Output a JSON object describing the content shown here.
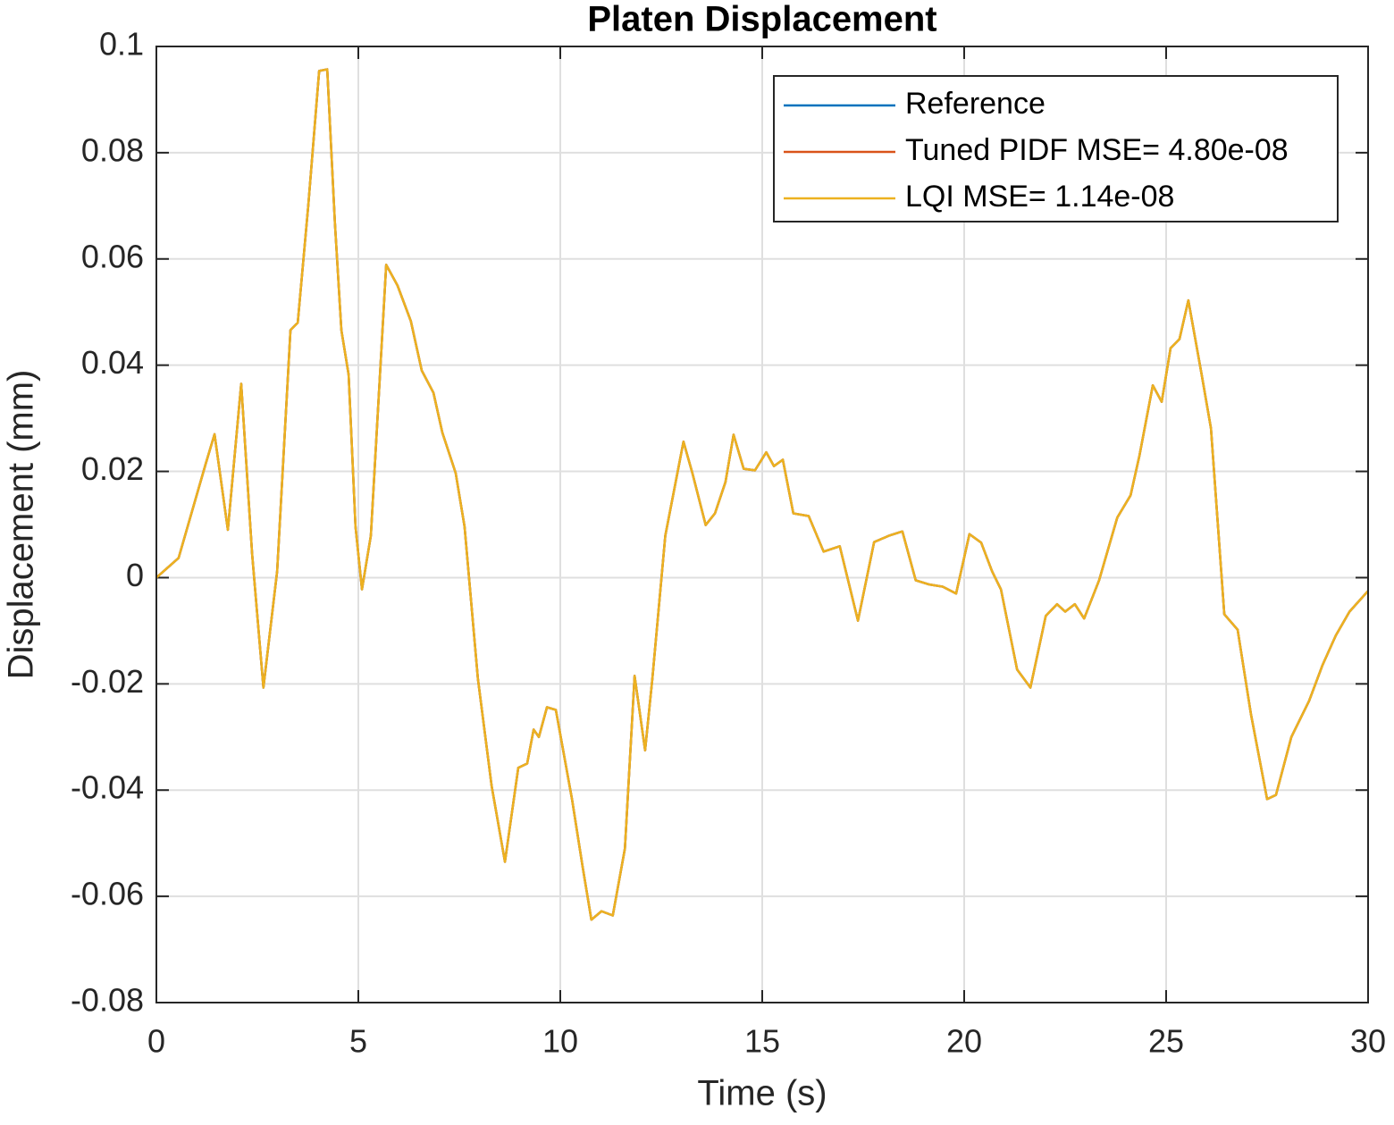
{
  "chart_data": {
    "type": "line",
    "title": "Platen Displacement",
    "x_label": "Time (s)",
    "y_label": "Displacement (mm)",
    "x": [
      0,
      0.55,
      1.22,
      1.44,
      1.77,
      2.1,
      2.37,
      2.65,
      2.99,
      3.32,
      3.5,
      3.76,
      4.03,
      4.23,
      4.42,
      4.58,
      4.76,
      4.93,
      5.09,
      5.31,
      5.69,
      5.97,
      6.3,
      6.57,
      6.86,
      7.08,
      7.41,
      7.63,
      7.96,
      8.3,
      8.63,
      8.96,
      9.18,
      9.34,
      9.47,
      9.67,
      9.89,
      10.29,
      10.55,
      10.77,
      11.02,
      11.3,
      11.6,
      11.84,
      12.1,
      12.28,
      12.6,
      13.05,
      13.27,
      13.6,
      13.83,
      14.09,
      14.29,
      14.54,
      14.82,
      15.1,
      15.29,
      15.51,
      15.77,
      16.15,
      16.52,
      16.92,
      17.37,
      17.77,
      18.14,
      18.47,
      18.8,
      19.14,
      19.47,
      19.8,
      20.13,
      20.42,
      20.69,
      20.91,
      21.31,
      21.64,
      22.02,
      22.3,
      22.5,
      22.74,
      22.97,
      23.34,
      23.79,
      24.12,
      24.34,
      24.67,
      24.89,
      25.11,
      25.33,
      25.55,
      25.88,
      26.11,
      26.44,
      26.77,
      27.1,
      27.5,
      27.72,
      28.1,
      28.54,
      28.87,
      29.2,
      29.54,
      30
    ],
    "series": [
      {
        "name": "Reference",
        "color": "#0072bd",
        "values": [
          0,
          0.0037,
          0.0214,
          0.027,
          0.009,
          0.0365,
          0.0045,
          -0.0207,
          0.0012,
          0.0466,
          0.048,
          0.07,
          0.0954,
          0.0957,
          0.0668,
          0.0466,
          0.0382,
          0.0096,
          -0.0022,
          0.0079,
          0.0589,
          0.055,
          0.0483,
          0.039,
          0.0348,
          0.0273,
          0.0197,
          0.0096,
          -0.019,
          -0.0392,
          -0.0535,
          -0.0358,
          -0.035,
          -0.0286,
          -0.03,
          -0.0244,
          -0.0249,
          -0.0417,
          -0.0543,
          -0.0644,
          -0.0628,
          -0.0636,
          -0.051,
          -0.0185,
          -0.0325,
          -0.019,
          0.0079,
          0.0256,
          0.0197,
          0.0099,
          0.0121,
          0.018,
          0.0269,
          0.0205,
          0.0202,
          0.0236,
          0.021,
          0.0222,
          0.0121,
          0.0116,
          0.0049,
          0.0059,
          -0.0081,
          0.0067,
          0.0079,
          0.0087,
          -0.0005,
          -0.0013,
          -0.0017,
          -0.003,
          0.0082,
          0.0066,
          0.0012,
          -0.0022,
          -0.0173,
          -0.0207,
          -0.0072,
          -0.005,
          -0.0064,
          -0.005,
          -0.0077,
          -0.0005,
          0.0113,
          0.0155,
          0.023,
          0.0362,
          0.0331,
          0.0432,
          0.0449,
          0.0522,
          0.0382,
          0.0281,
          -0.0069,
          -0.0098,
          -0.0257,
          -0.0417,
          -0.0409,
          -0.03,
          -0.0232,
          -0.0165,
          -0.0109,
          -0.0064,
          -0.0025
        ]
      },
      {
        "name": "Tuned PIDF MSE= 4.80e-08",
        "color": "#d95319",
        "values": [
          0,
          0.0037,
          0.0214,
          0.027,
          0.009,
          0.0365,
          0.0045,
          -0.0207,
          0.0012,
          0.0466,
          0.048,
          0.07,
          0.0954,
          0.0957,
          0.0668,
          0.0466,
          0.0382,
          0.0096,
          -0.0022,
          0.0079,
          0.0589,
          0.055,
          0.0483,
          0.039,
          0.0348,
          0.0273,
          0.0197,
          0.0096,
          -0.019,
          -0.0392,
          -0.0535,
          -0.0358,
          -0.035,
          -0.0286,
          -0.03,
          -0.0244,
          -0.0249,
          -0.0417,
          -0.0543,
          -0.0644,
          -0.0628,
          -0.0636,
          -0.051,
          -0.0185,
          -0.0325,
          -0.019,
          0.0079,
          0.0256,
          0.0197,
          0.0099,
          0.0121,
          0.018,
          0.0269,
          0.0205,
          0.0202,
          0.0236,
          0.021,
          0.0222,
          0.0121,
          0.0116,
          0.0049,
          0.0059,
          -0.0081,
          0.0067,
          0.0079,
          0.0087,
          -0.0005,
          -0.0013,
          -0.0017,
          -0.003,
          0.0082,
          0.0066,
          0.0012,
          -0.0022,
          -0.0173,
          -0.0207,
          -0.0072,
          -0.005,
          -0.0064,
          -0.005,
          -0.0077,
          -0.0005,
          0.0113,
          0.0155,
          0.023,
          0.0362,
          0.0331,
          0.0432,
          0.0449,
          0.0522,
          0.0382,
          0.0281,
          -0.0069,
          -0.0098,
          -0.0257,
          -0.0417,
          -0.0409,
          -0.03,
          -0.0232,
          -0.0165,
          -0.0109,
          -0.0064,
          -0.0025
        ]
      },
      {
        "name": "LQI MSE= 1.14e-08",
        "color": "#edb120",
        "values": [
          0,
          0.0037,
          0.0214,
          0.027,
          0.009,
          0.0365,
          0.0045,
          -0.0207,
          0.0012,
          0.0466,
          0.048,
          0.07,
          0.0954,
          0.0957,
          0.0668,
          0.0466,
          0.0382,
          0.0096,
          -0.0022,
          0.0079,
          0.0589,
          0.055,
          0.0483,
          0.039,
          0.0348,
          0.0273,
          0.0197,
          0.0096,
          -0.019,
          -0.0392,
          -0.0535,
          -0.0358,
          -0.035,
          -0.0286,
          -0.03,
          -0.0244,
          -0.0249,
          -0.0417,
          -0.0543,
          -0.0644,
          -0.0628,
          -0.0636,
          -0.051,
          -0.0185,
          -0.0325,
          -0.019,
          0.0079,
          0.0256,
          0.0197,
          0.0099,
          0.0121,
          0.018,
          0.0269,
          0.0205,
          0.0202,
          0.0236,
          0.021,
          0.0222,
          0.0121,
          0.0116,
          0.0049,
          0.0059,
          -0.0081,
          0.0067,
          0.0079,
          0.0087,
          -0.0005,
          -0.0013,
          -0.0017,
          -0.003,
          0.0082,
          0.0066,
          0.0012,
          -0.0022,
          -0.0173,
          -0.0207,
          -0.0072,
          -0.005,
          -0.0064,
          -0.005,
          -0.0077,
          -0.0005,
          0.0113,
          0.0155,
          0.023,
          0.0362,
          0.0331,
          0.0432,
          0.0449,
          0.0522,
          0.0382,
          0.0281,
          -0.0069,
          -0.0098,
          -0.0257,
          -0.0417,
          -0.0409,
          -0.03,
          -0.0232,
          -0.0165,
          -0.0109,
          -0.0064,
          -0.0025
        ]
      }
    ],
    "xlim": [
      0,
      30
    ],
    "xticks": [
      0,
      5,
      10,
      15,
      20,
      25,
      30
    ],
    "ylim": [
      -0.08,
      0.1
    ],
    "yticks": [
      -0.08,
      -0.06,
      -0.04,
      -0.02,
      0,
      0.02,
      0.04,
      0.06,
      0.08,
      0.1
    ],
    "grid": true,
    "legend": "upper right"
  }
}
